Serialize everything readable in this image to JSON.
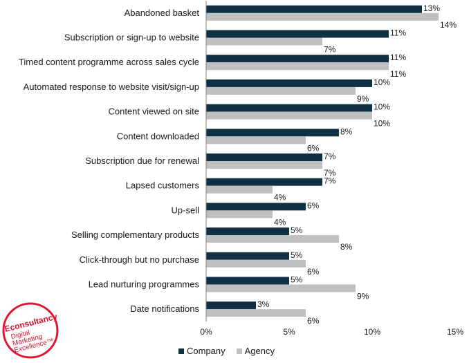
{
  "chart_data": {
    "type": "bar",
    "orientation": "horizontal",
    "categories": [
      "Abandoned basket",
      "Subscription or sign-up to website",
      "Timed content programme across sales cycle",
      "Automated response to website visit/sign-up",
      "Content viewed on site",
      "Content downloaded",
      "Subscription due for renewal",
      "Lapsed customers",
      "Up-sell",
      "Selling complementary products",
      "Click-through but no purchase",
      "Lead nurturing programmes",
      "Date notifications"
    ],
    "series": [
      {
        "name": "Company",
        "color": "#0f3143",
        "values": [
          13,
          11,
          11,
          10,
          10,
          8,
          7,
          7,
          6,
          5,
          5,
          5,
          3
        ]
      },
      {
        "name": "Agency",
        "color": "#c0c0c0",
        "values": [
          14,
          7,
          11,
          9,
          10,
          6,
          7,
          4,
          4,
          8,
          6,
          9,
          6
        ]
      }
    ],
    "value_labels": {
      "Company": [
        "13%",
        "11%",
        "11%",
        "10%",
        "10%",
        "8%",
        "7%",
        "7%",
        "6%",
        "5%",
        "5%",
        "5%",
        "3%"
      ],
      "Agency": [
        "14%",
        "7%",
        "11%",
        "9%",
        "10%",
        "6%",
        "7%",
        "4%",
        "4%",
        "8%",
        "6%",
        "9%",
        "6%"
      ]
    },
    "xlim": [
      0,
      15
    ],
    "xticks": [
      0,
      5,
      10,
      15
    ],
    "xtick_labels": [
      "0%",
      "5%",
      "10%",
      "15%"
    ],
    "grid": false,
    "legend_position": "bottom"
  },
  "legend": {
    "company_label": "Company",
    "agency_label": "Agency"
  },
  "logo": {
    "brand": "Econsultancy",
    "line1": "Digital",
    "line2": "Marketing",
    "line3": "Excellence™",
    "color": "#e3122e"
  }
}
